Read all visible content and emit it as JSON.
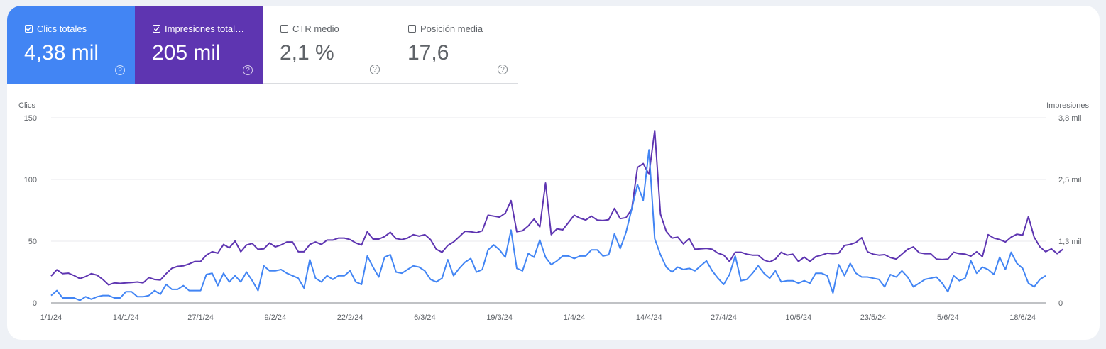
{
  "metrics": [
    {
      "label": "Clics totales",
      "value": "4,38 mil",
      "checked": true,
      "color": "#4285f4"
    },
    {
      "label": "Impresiones total…",
      "value": "205 mil",
      "checked": true,
      "color": "#5e35b1"
    },
    {
      "label": "CTR medio",
      "value": "2,1 %",
      "checked": false,
      "color": "#ffffff"
    },
    {
      "label": "Posición media",
      "value": "17,6",
      "checked": false,
      "color": "#ffffff"
    }
  ],
  "help_glyph": "?",
  "chart_data": {
    "type": "line",
    "ylabel_left": "Clics",
    "ylabel_right": "Impresiones",
    "left_ticks": [
      "0",
      "50",
      "100",
      "150"
    ],
    "right_ticks": [
      "0",
      "1,3 mil",
      "2,5 mil",
      "3,8 mil"
    ],
    "x_tick_labels": [
      "1/1/24",
      "14/1/24",
      "27/1/24",
      "9/2/24",
      "22/2/24",
      "6/3/24",
      "19/3/24",
      "1/4/24",
      "14/4/24",
      "27/4/24",
      "10/5/24",
      "23/5/24",
      "5/6/24",
      "18/6/24"
    ],
    "x_start": "2024-01-01",
    "left_ylim": [
      0,
      150
    ],
    "right_ylim": [
      0,
      3800
    ],
    "series": [
      {
        "name": "Clics totales",
        "axis": "left",
        "color": "#4285f4",
        "values": [
          6,
          10,
          4,
          4,
          4,
          2,
          5,
          3,
          5,
          6,
          6,
          4,
          4,
          9,
          9,
          5,
          5,
          6,
          10,
          7,
          15,
          11,
          11,
          14,
          10,
          10,
          10,
          23,
          24,
          14,
          24,
          17,
          22,
          17,
          25,
          18,
          10,
          30,
          26,
          26,
          27,
          24,
          22,
          20,
          12,
          35,
          20,
          17,
          22,
          19,
          22,
          22,
          26,
          17,
          15,
          38,
          29,
          21,
          37,
          39,
          25,
          24,
          27,
          30,
          29,
          26,
          19,
          17,
          20,
          35,
          22,
          28,
          33,
          36,
          25,
          27,
          43,
          47,
          43,
          37,
          59,
          28,
          26,
          40,
          37,
          51,
          37,
          31,
          34,
          38,
          38,
          36,
          38,
          38,
          43,
          43,
          38,
          39,
          56,
          44,
          57,
          76,
          96,
          83,
          124,
          52,
          39,
          29,
          25,
          29,
          27,
          28,
          26,
          30,
          34,
          26,
          20,
          15,
          23,
          38,
          18,
          19,
          24,
          30,
          24,
          20,
          26,
          17,
          18,
          18,
          16,
          18,
          16,
          24,
          24,
          22,
          8,
          31,
          22,
          32,
          24,
          21,
          21,
          20,
          19,
          13,
          23,
          21,
          26,
          21,
          13,
          16,
          19,
          20,
          21,
          16,
          9,
          22,
          18,
          20,
          34,
          24,
          29,
          27,
          23,
          37,
          27,
          41,
          32,
          28,
          16,
          13,
          19,
          22
        ]
      },
      {
        "name": "Impresiones totales",
        "axis": "right",
        "color": "#5e35b1",
        "values": [
          550,
          680,
          600,
          610,
          560,
          500,
          540,
          600,
          570,
          480,
          370,
          410,
          400,
          410,
          420,
          430,
          410,
          520,
          480,
          470,
          600,
          710,
          750,
          760,
          800,
          850,
          850,
          980,
          1050,
          1020,
          1200,
          1130,
          1270,
          1050,
          1190,
          1220,
          1100,
          1110,
          1230,
          1150,
          1190,
          1250,
          1250,
          1050,
          1050,
          1200,
          1250,
          1200,
          1290,
          1290,
          1330,
          1330,
          1300,
          1230,
          1190,
          1460,
          1310,
          1310,
          1360,
          1450,
          1320,
          1300,
          1330,
          1400,
          1370,
          1400,
          1300,
          1100,
          1040,
          1180,
          1250,
          1360,
          1470,
          1460,
          1440,
          1480,
          1800,
          1780,
          1760,
          1840,
          2100,
          1460,
          1480,
          1580,
          1720,
          1560,
          2460,
          1400,
          1520,
          1500,
          1650,
          1800,
          1740,
          1700,
          1780,
          1700,
          1690,
          1710,
          1940,
          1730,
          1750,
          1920,
          2780,
          2860,
          2640,
          3540,
          1820,
          1470,
          1330,
          1350,
          1210,
          1320,
          1100,
          1110,
          1120,
          1100,
          1020,
          980,
          850,
          1040,
          1040,
          1000,
          980,
          980,
          880,
          840,
          900,
          1040,
          980,
          1000,
          850,
          940,
          850,
          950,
          980,
          1020,
          1010,
          1020,
          1180,
          1200,
          1240,
          1340,
          1050,
          1000,
          980,
          990,
          930,
          900,
          1000,
          1100,
          1150,
          1030,
          1010,
          1010,
          900,
          890,
          900,
          1040,
          1010,
          1000,
          960,
          1050,
          950,
          1400,
          1330,
          1300,
          1250,
          1350,
          1410,
          1390,
          1770,
          1350,
          1150,
          1050,
          1110,
          1010,
          1100
        ]
      }
    ]
  }
}
